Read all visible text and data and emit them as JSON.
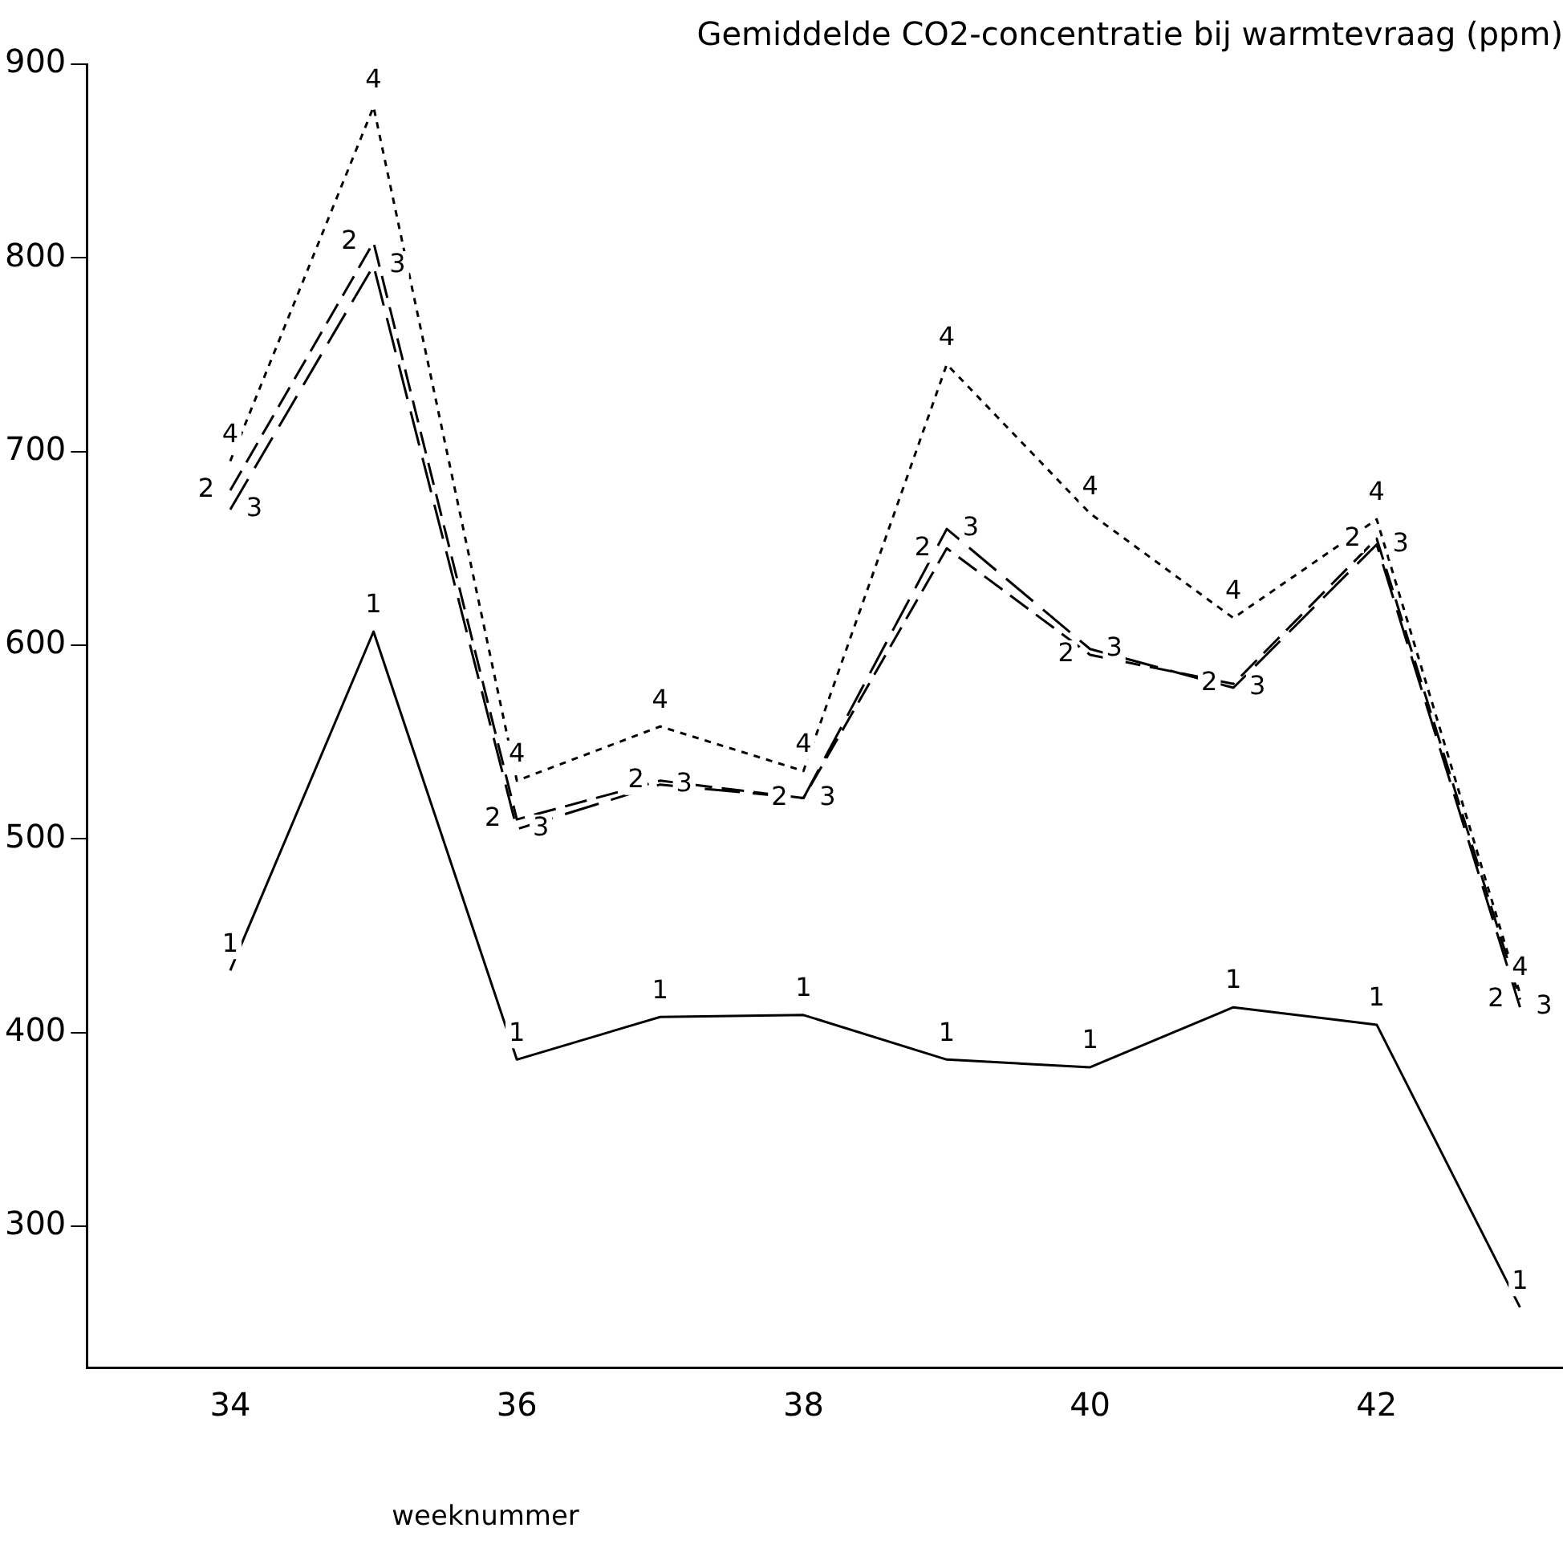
{
  "chart_data": {
    "type": "line",
    "title": "Gemiddelde CO2-concentratie bij warmtevraag (ppm)",
    "xlabel": "weeknummer",
    "x": [
      34,
      35,
      36,
      37,
      38,
      39,
      40,
      41,
      42,
      43
    ],
    "series": [
      {
        "name": "1",
        "color": "#000000",
        "line_style": "solid",
        "values": [
          432,
          607,
          386,
          408,
          409,
          386,
          382,
          413,
          404,
          258
        ]
      },
      {
        "name": "2",
        "color": "#000000",
        "line_style": "dashed",
        "values": [
          680,
          808,
          510,
          530,
          521,
          650,
          595,
          580,
          655,
          417
        ]
      },
      {
        "name": "3",
        "color": "#000000",
        "line_style": "dashed",
        "values": [
          670,
          796,
          505,
          528,
          521,
          660,
          598,
          578,
          652,
          413
        ]
      },
      {
        "name": "4",
        "color": "#000000",
        "line_style": "dotted",
        "values": [
          695,
          878,
          530,
          558,
          535,
          745,
          668,
          614,
          665,
          420
        ]
      }
    ],
    "xlim": [
      33,
      43.3
    ],
    "xticks": [
      34,
      36,
      38,
      40,
      42
    ],
    "ylim": [
      227,
      900
    ],
    "yticks": [
      300,
      400,
      500,
      600,
      700,
      800,
      900
    ],
    "grid": false,
    "legend": false
  }
}
